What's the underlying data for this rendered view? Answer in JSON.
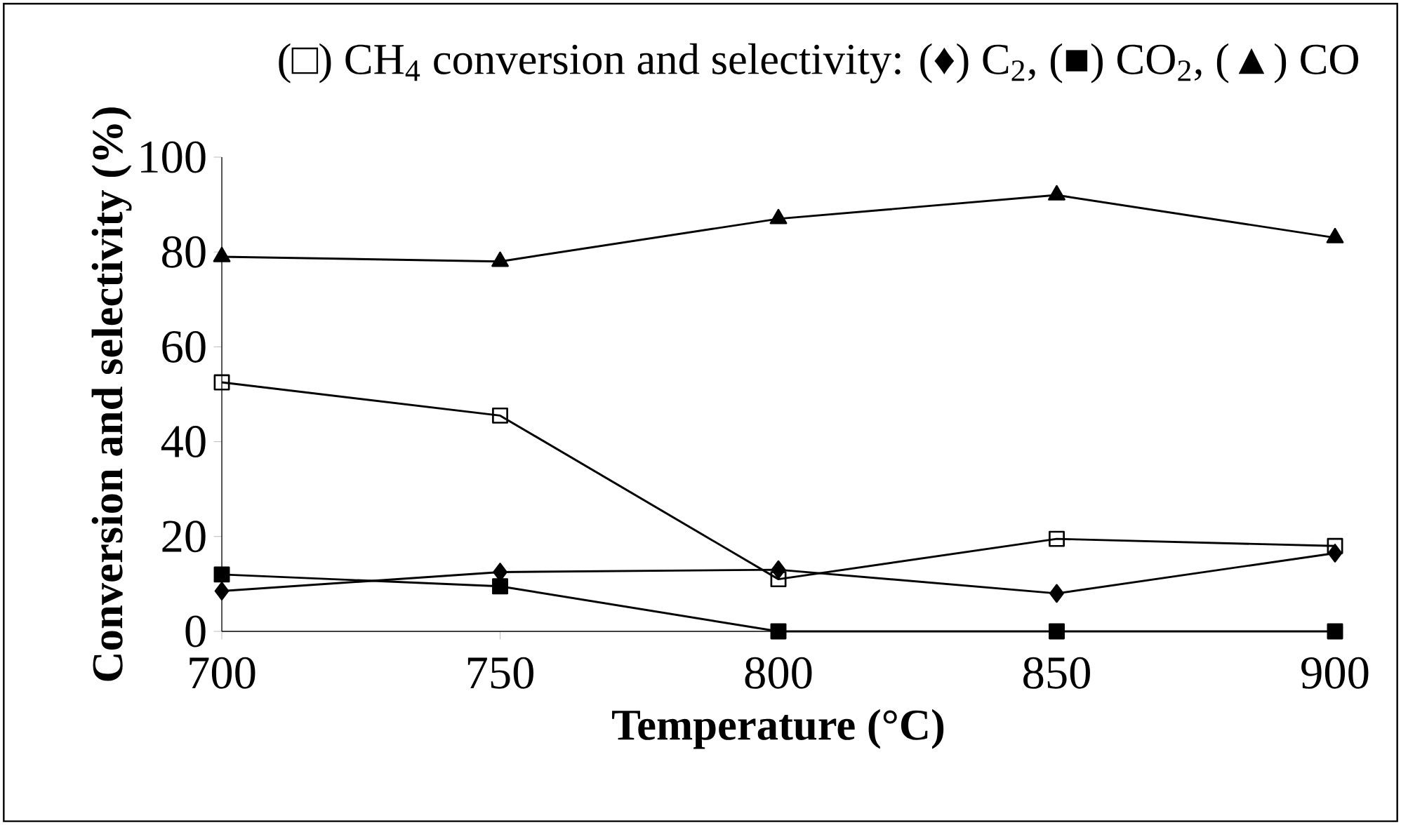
{
  "chart_data": {
    "type": "line",
    "title": "(□) CH$_{4}$ conversion and selectivity: (♦) C$_{2}$, (■) CO$_{2}$, (▲) CO",
    "xlabel": "Temperature (°C)",
    "ylabel": "Conversion  and selectivity (%)",
    "x": [
      700,
      750,
      800,
      850,
      900
    ],
    "series": [
      {
        "color": "#000000",
        "marker": "square",
        "values": [
          52.5,
          45.5,
          11,
          19.5,
          18
        ]
      },
      {
        "color": "#000000",
        "marker": "diamond",
        "values": [
          8.5,
          12.5,
          13,
          8,
          16.5
        ]
      },
      {
        "color": "#000000",
        "marker": "square",
        "values": [
          12,
          9.5,
          0,
          0,
          0
        ]
      },
      {
        "color": "#000000",
        "marker": "triangle",
        "values": [
          79,
          78,
          87,
          92,
          83
        ]
      }
    ],
    "xlim": [
      700,
      900
    ],
    "xticks": [
      700,
      750,
      800,
      850,
      900
    ],
    "ylim": [
      0,
      100
    ],
    "yticks": [
      0,
      20,
      40,
      60,
      80,
      100
    ],
    "grid": false,
    "line_style": "solid"
  }
}
